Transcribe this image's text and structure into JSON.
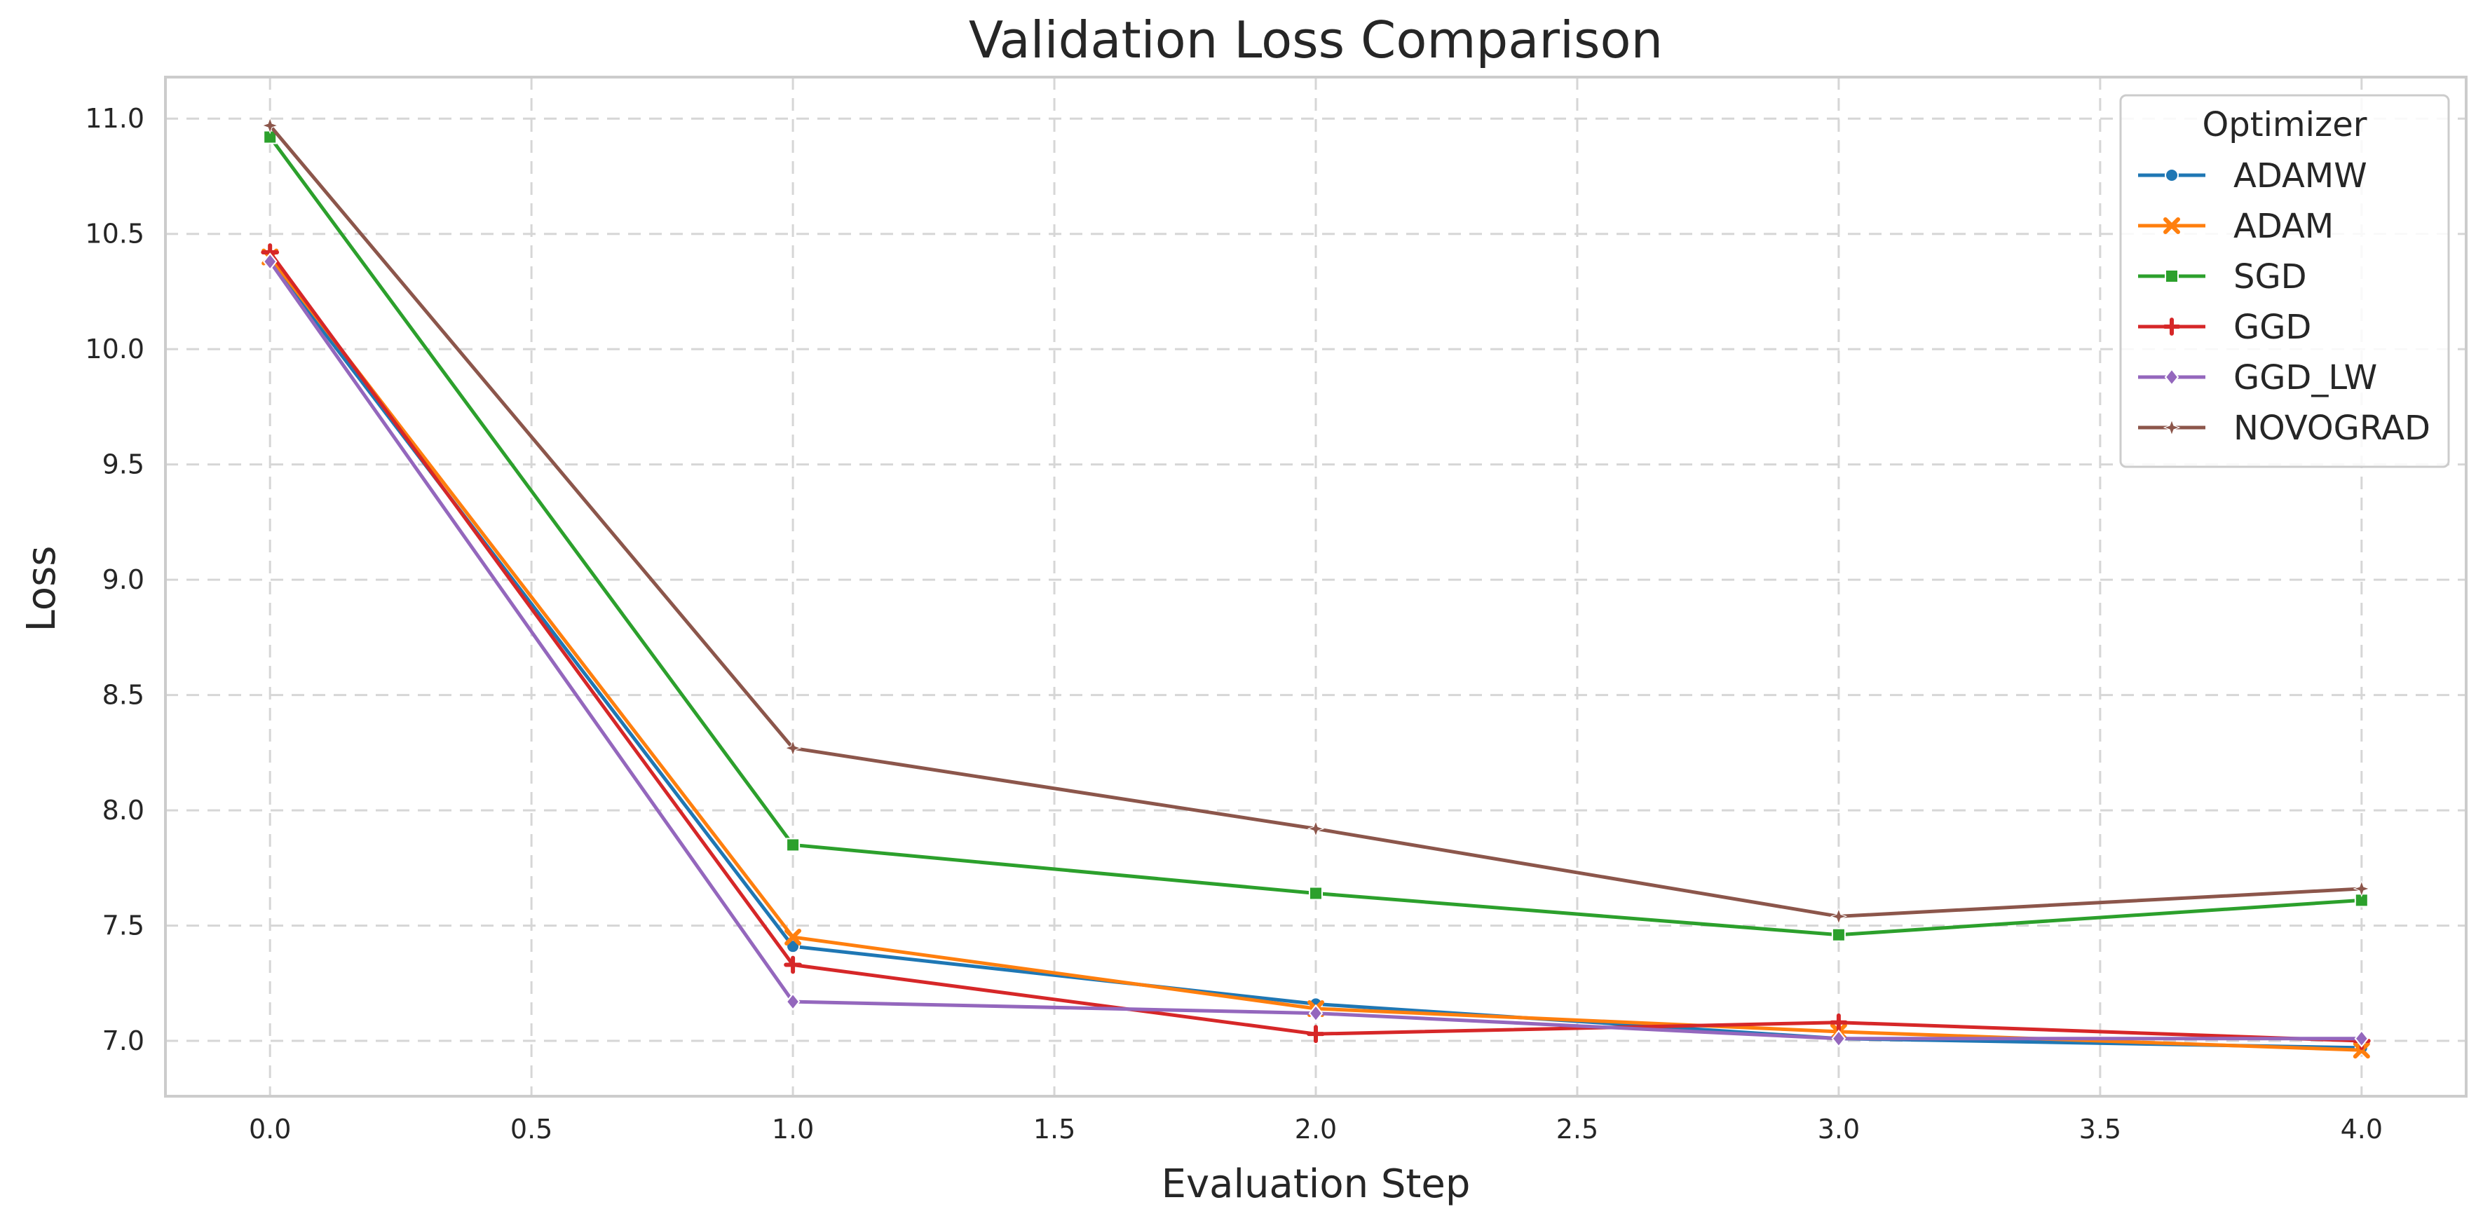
{
  "chart_data": {
    "type": "line",
    "title": "Validation Loss Comparison",
    "xlabel": "Evaluation Step",
    "ylabel": "Loss",
    "xlim": [
      -0.2,
      4.2
    ],
    "ylim": [
      6.76,
      11.18
    ],
    "xticks": [
      0.0,
      0.5,
      1.0,
      1.5,
      2.0,
      2.5,
      3.0,
      3.5,
      4.0
    ],
    "xtick_labels": [
      "0.0",
      "0.5",
      "1.0",
      "1.5",
      "2.0",
      "2.5",
      "3.0",
      "3.5",
      "4.0"
    ],
    "yticks": [
      7.0,
      7.5,
      8.0,
      8.5,
      9.0,
      9.5,
      10.0,
      10.5,
      11.0
    ],
    "ytick_labels": [
      "7.0",
      "7.5",
      "8.0",
      "8.5",
      "9.0",
      "9.5",
      "10.0",
      "10.5",
      "11.0"
    ],
    "grid": true,
    "legend": {
      "title": "Optimizer",
      "placement": "top-right"
    },
    "x": [
      0,
      1,
      2,
      3,
      4
    ],
    "series": [
      {
        "name": "ADAMW",
        "color": "#1f77b4",
        "marker": "circle",
        "values": [
          10.38,
          7.41,
          7.16,
          7.01,
          6.97
        ]
      },
      {
        "name": "ADAM",
        "color": "#ff7f0e",
        "marker": "x",
        "values": [
          10.4,
          7.45,
          7.14,
          7.04,
          6.96
        ]
      },
      {
        "name": "SGD",
        "color": "#2ca02c",
        "marker": "square",
        "values": [
          10.92,
          7.85,
          7.64,
          7.46,
          7.61
        ]
      },
      {
        "name": "GGD",
        "color": "#d62728",
        "marker": "plus",
        "values": [
          10.42,
          7.33,
          7.03,
          7.08,
          7.0
        ]
      },
      {
        "name": "GGD_LW",
        "color": "#9467bd",
        "marker": "diamond",
        "values": [
          10.38,
          7.17,
          7.12,
          7.01,
          7.01
        ]
      },
      {
        "name": "NOVOGRAD",
        "color": "#8c564b",
        "marker": "star",
        "values": [
          10.97,
          8.27,
          7.92,
          7.54,
          7.66
        ]
      }
    ]
  }
}
